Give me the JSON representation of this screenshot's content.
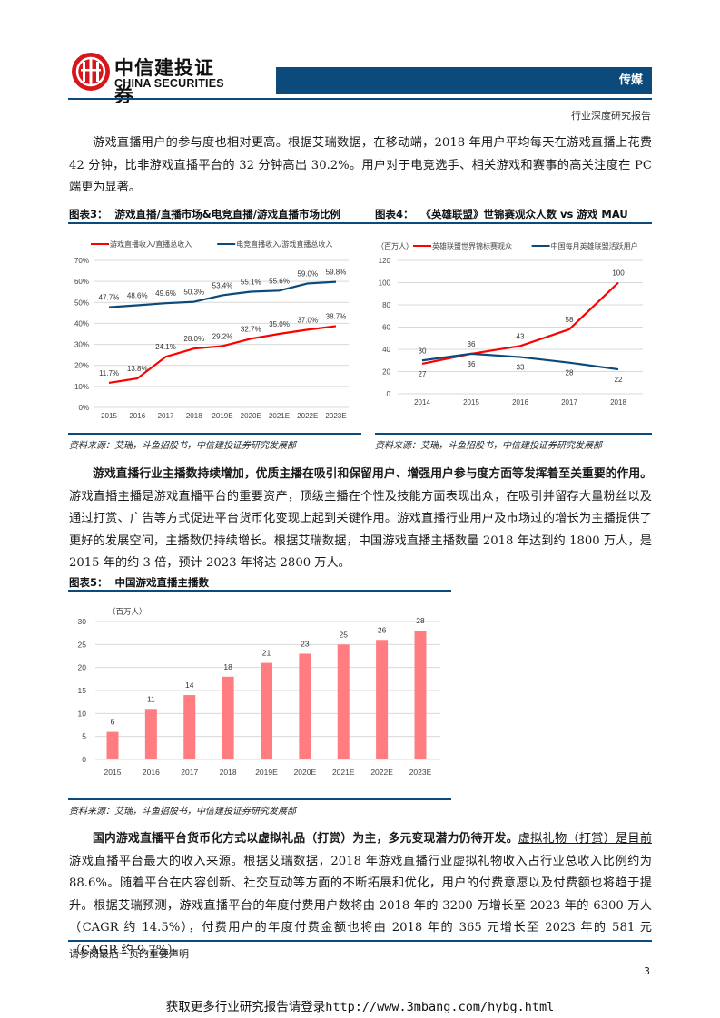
{
  "header": {
    "logo_cn": "中信建投证券",
    "logo_en": "CHINA SECURITIES",
    "sector": "传媒",
    "report_type": "行业深度研究报告",
    "brand_color": "#0b4a7a",
    "logo_color": "#d7161c"
  },
  "body": {
    "para1": "游戏直播用户的参与度也相对更高。根据艾瑞数据，在移动端，2018 年用户平均每天在游戏直播上花费 42 分钟，比非游戏直播平台的 32 分钟高出 30.2%。用户对于电竞选手、相关游戏和赛事的高关注度在 PC 端更为显著。",
    "para2_bold": "游戏直播行业主播数持续增加，优质主播在吸引和保留用户、增强用户参与度方面等发挥着至关重要的作用。",
    "para2_rest": "游戏直播主播是游戏直播平台的重要资产，顶级主播在个性及技能方面表现出众，在吸引并留存大量粉丝以及通过打赏、广告等方式促进平台货币化变现上起到关键作用。游戏直播行业用户及市场过的增长为主播提供了更好的发展空间，主播数仍持续增长。根据艾瑞数据，中国游戏直播主播数量 2018 年达到约 1800 万人，是 2015 年的约 3 倍，预计 2023 年将达 2800 万人。",
    "para3_bold": "国内游戏直播平台货币化方式以虚拟礼品（打赏）为主，多元变现潜力仍待开发。",
    "para3_underline": "虚拟礼物（打赏）是目前游戏直播平台最大的收入来源。",
    "para3_rest": "根据艾瑞数据，2018 年游戏直播行业虚拟礼物收入占行业总收入比例约为 88.6%。随着平台在内容创新、社交互动等方面的不断拓展和优化，用户的付费意愿以及付费额也将趋于提升。根据艾瑞预测，游戏直播平台的年度付费用户数将由 2018 年的 3200 万增长至 2023 年的 6300 万人（CAGR 约 14.5%），付费用户的年度付费金额也将由 2018 年的 365 元增长至 2023 年的 581 元（CAGR 约 9.7%）。"
  },
  "figures": {
    "fig3": {
      "label": "图表3：",
      "title": "游戏直播/直播市场&电竞直播/游戏直播市场比例",
      "source": "资料来源：艾瑞，斗鱼招股书，中信建投证券研究发展部"
    },
    "fig4": {
      "label": "图表4：",
      "title": "《英雄联盟》世锦赛观众人数 vs 游戏 MAU",
      "source": "资料来源：艾瑞，斗鱼招股书，中信建投证券研究发展部"
    },
    "fig5": {
      "label": "图表5：",
      "title": "中国游戏直播主播数",
      "source": "资料来源：艾瑞，斗鱼招股书，中信建投证券研究发展部"
    }
  },
  "chart_data": [
    {
      "type": "line",
      "title": "游戏直播/直播市场&电竞直播/游戏直播市场比例",
      "categories": [
        "2015",
        "2016",
        "2017",
        "2018",
        "2019E",
        "2020E",
        "2021E",
        "2022E",
        "2023E"
      ],
      "series": [
        {
          "name": "游戏直播收入/直播总收入",
          "color": "#ff0000",
          "values": [
            11.7,
            13.8,
            24.1,
            28.0,
            29.2,
            32.7,
            35.0,
            37.0,
            38.7
          ],
          "labels": [
            "11.7%",
            "13.8%",
            "24.1%",
            "28.0%",
            "29.2%",
            "32.7%",
            "35.0%",
            "37.0%",
            "38.7%"
          ]
        },
        {
          "name": "电竞直播收入/游戏直播总收入",
          "color": "#0b4a7a",
          "values": [
            47.7,
            48.6,
            49.6,
            50.3,
            53.4,
            55.1,
            55.6,
            59.0,
            59.8
          ],
          "labels": [
            "47.7%",
            "48.6%",
            "49.6%",
            "50.3%",
            "53.4%",
            "55.1%",
            "55.6%",
            "59.0%",
            "59.8%"
          ]
        }
      ],
      "yticks": [
        "0%",
        "10%",
        "20%",
        "30%",
        "40%",
        "50%",
        "60%",
        "70%"
      ],
      "ylim": [
        0,
        70
      ],
      "grid": true,
      "legend_position": "top"
    },
    {
      "type": "line",
      "title": "《英雄联盟》世锦赛观众人数 vs 游戏 MAU",
      "unit": "（百万人）",
      "categories": [
        "2014",
        "2015",
        "2016",
        "2017",
        "2018"
      ],
      "series": [
        {
          "name": "英雄联盟世界锦标赛观众",
          "color": "#ff0000",
          "values": [
            27,
            36,
            43,
            58,
            100
          ]
        },
        {
          "name": "中国每月英雄联盟活跃用户",
          "color": "#0b4a7a",
          "values": [
            30,
            36,
            33,
            28,
            22
          ]
        }
      ],
      "yticks": [
        "0",
        "20",
        "40",
        "60",
        "80",
        "100",
        "120"
      ],
      "ylim": [
        0,
        120
      ],
      "grid": true,
      "legend_position": "top"
    },
    {
      "type": "bar",
      "title": "中国游戏直播主播数",
      "unit": "（百万人）",
      "categories": [
        "2015",
        "2016",
        "2017",
        "2018",
        "2019E",
        "2020E",
        "2021E",
        "2022E",
        "2023E"
      ],
      "values": [
        6,
        11,
        14,
        18,
        21,
        23,
        25,
        26,
        28
      ],
      "color": "#ff7c80",
      "yticks": [
        "0",
        "5",
        "10",
        "15",
        "20",
        "25",
        "30"
      ],
      "ylim": [
        0,
        30
      ],
      "grid": true
    }
  ],
  "footer": {
    "disclaimer": "请参阅最后一页的重要声明",
    "page_number": "3",
    "promo": "获取更多行业研究报告请登录http://www.3mbang.com/hybg.html"
  }
}
